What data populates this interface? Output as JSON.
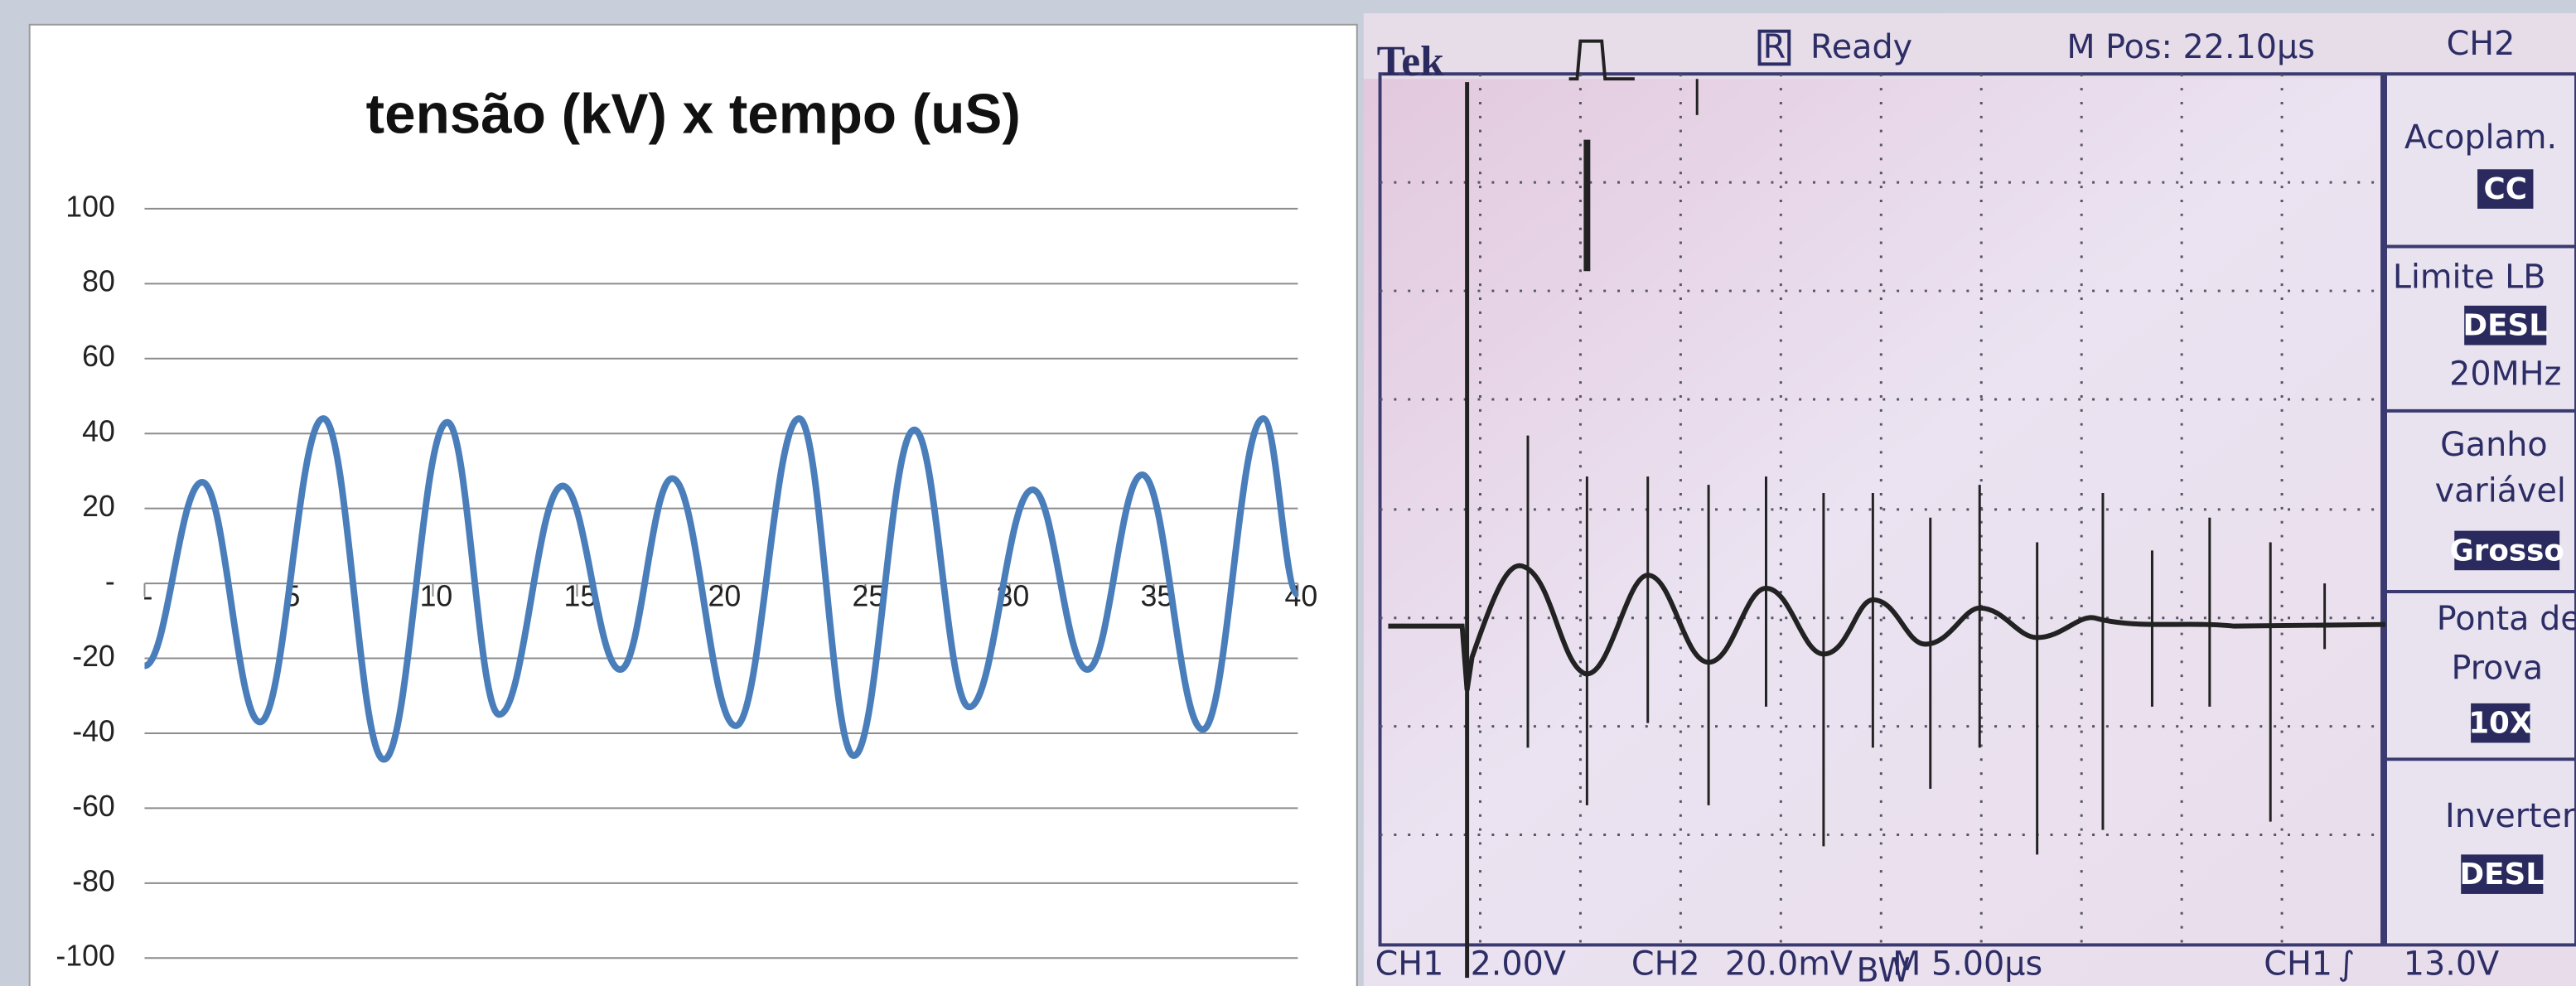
{
  "chart_data": {
    "type": "line",
    "title": "tensão (kV) x tempo (uS)",
    "x": [
      0,
      2,
      4,
      6.2,
      8.3,
      10.5,
      12.3,
      14.5,
      16.5,
      18.3,
      20.5,
      22.7,
      24.6,
      26.7,
      28.6,
      30.8,
      32.7,
      34.6,
      36.7,
      38.8,
      40
    ],
    "values": [
      -22,
      27,
      -37,
      44,
      -47,
      43,
      -35,
      26,
      -23,
      28,
      -38,
      44,
      -46,
      41,
      -33,
      25,
      -23,
      29,
      -39,
      44,
      -3
    ],
    "color": "#4a7ebb",
    "xlim": [
      0,
      40
    ],
    "xticks": [
      {
        "value": 0,
        "label": "-"
      },
      5,
      10,
      15,
      20,
      25,
      30,
      35,
      40
    ],
    "ylim": [
      -100,
      100
    ],
    "yticks": [
      -100,
      -80,
      -60,
      -40,
      -20,
      {
        "value": 0,
        "label": "-"
      },
      20,
      40,
      60,
      80,
      100
    ],
    "grid": true
  },
  "scope": {
    "header": {
      "brand": "Tek",
      "status_icon": "R",
      "status": "Ready",
      "position": "M Pos: 22.10µs"
    },
    "menu": {
      "title": "CH2",
      "coupling": {
        "label": "Acoplam.",
        "value": "CC"
      },
      "bandwidth": {
        "label": "Limite LB",
        "value": "DESL",
        "note": "20MHz"
      },
      "gain": {
        "label_1": "Ganho",
        "label_2": "variável",
        "value": "Grosso"
      },
      "probe": {
        "label_1": "Ponta de",
        "label_2": "Prova",
        "value": "10X"
      },
      "invert": {
        "label": "Inverter",
        "value": "DESL"
      }
    },
    "footer": {
      "ch1": "CH1",
      "ch1_scale": "2.00V",
      "ch2": "CH2",
      "ch2_scale": "20.0mV",
      "bw": "BW",
      "time": "M 5.00µs",
      "trig_ch": "CH1",
      "trig_slope": "∫",
      "trig_level": "13.0V"
    }
  }
}
